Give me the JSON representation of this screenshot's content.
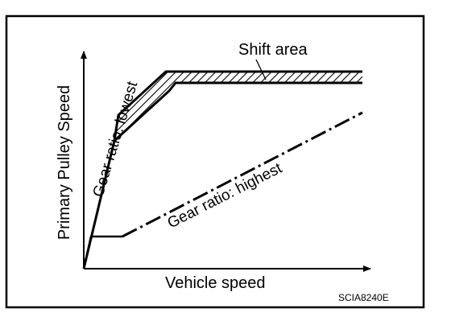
{
  "diagram": {
    "x_axis_label": "Vehicle speed",
    "y_axis_label": "Primary Pulley Speed",
    "curve_lowest_label": "Gear ratio: lowest",
    "curve_highest_label": "Gear ratio: highest",
    "shift_area_label": "Shift area",
    "figure_code": "SCIA8240E"
  },
  "colors": {
    "ink": "#000000",
    "background": "#ffffff"
  }
}
